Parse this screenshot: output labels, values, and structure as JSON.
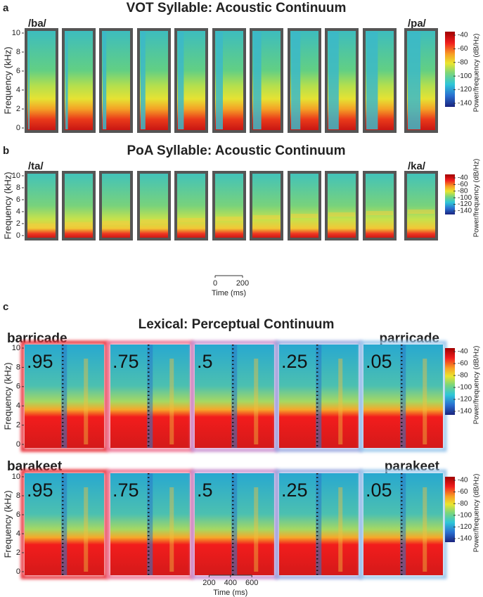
{
  "panels": [
    {
      "letter": "a",
      "title": "VOT Syllable: Acoustic Continuum",
      "endpoints": [
        "/ba/",
        "/pa/"
      ],
      "ylabel": "Frequency (kHz)",
      "yticks": [
        0,
        2,
        4,
        6,
        8,
        10
      ],
      "colorbar_label": "Power/frequency (dB/Hz)",
      "colorbar_ticks": [
        -40,
        -60,
        -80,
        -100,
        -120,
        -140
      ]
    },
    {
      "letter": "b",
      "title": "PoA Syllable: Acoustic Continuum",
      "endpoints": [
        "/ta/",
        "/ka/"
      ],
      "ylabel": "Frequency (kHz)",
      "yticks": [
        0,
        2,
        4,
        6,
        8,
        10
      ],
      "colorbar_label": "Power/frequency (dB/Hz)",
      "colorbar_ticks": [
        -40,
        -60,
        -80,
        -100,
        -120,
        -140
      ],
      "xlabel": "Time (ms)",
      "xticks": [
        0,
        200
      ]
    },
    {
      "letter": "c",
      "title": "Lexical: Perceptual Continuum",
      "rows": [
        {
          "endpoints": [
            {
              "text": "barricade",
              "color": "#1e7d3e"
            },
            {
              "text": "parricade",
              "color": "#e8262c"
            }
          ],
          "ylabel": "Frequency (kHz)",
          "yticks": [
            0,
            2,
            4,
            6,
            8,
            10
          ],
          "colorbar_label": "Power/frequency (dB/Hz)",
          "colorbar_ticks": [
            -40,
            -60,
            -80,
            -100,
            -120,
            -140
          ]
        },
        {
          "endpoints": [
            {
              "text": "barakeet",
              "color": "#e8262c"
            },
            {
              "text": "parakeet",
              "color": "#1e7d3e"
            }
          ],
          "ylabel": "Frequency (kHz)",
          "yticks": [
            0,
            2,
            4,
            6,
            8,
            10
          ],
          "colorbar_label": "Power/frequency (dB/Hz)",
          "colorbar_ticks": [
            -40,
            -60,
            -80,
            -100,
            -120,
            -140
          ]
        }
      ],
      "probabilities": [
        ".95",
        ".75",
        ".5",
        ".25",
        ".05"
      ],
      "xlabel": "Time (ms)",
      "xticks": [
        200,
        400,
        600
      ]
    }
  ]
}
